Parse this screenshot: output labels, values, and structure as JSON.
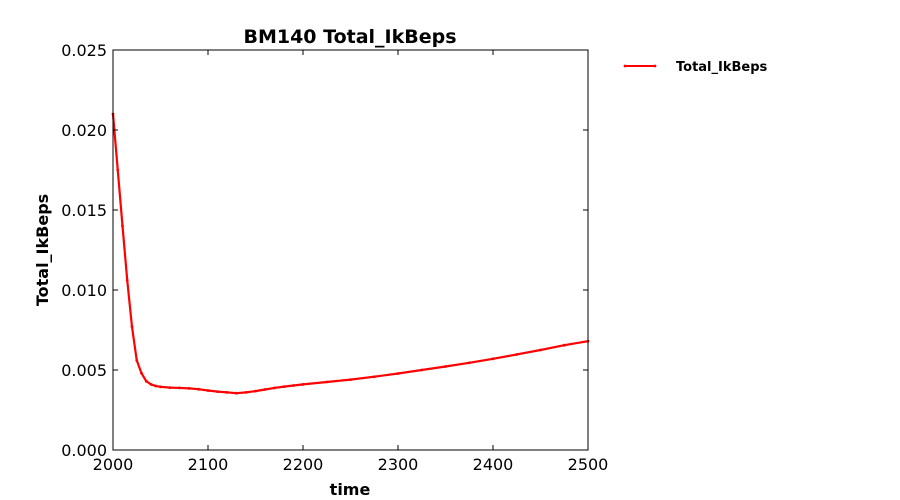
{
  "chart_data": {
    "type": "line",
    "title": "BM140 Total_IkBeps",
    "xlabel": "time",
    "ylabel": "Total_IkBeps",
    "xlim": [
      2000,
      2500
    ],
    "ylim": [
      0,
      0.025
    ],
    "xticks": [
      "2000",
      "2100",
      "2200",
      "2300",
      "2400",
      "2500"
    ],
    "yticks": [
      "0.000",
      "0.005",
      "0.010",
      "0.015",
      "0.020",
      "0.025"
    ],
    "grid": false,
    "legend": {
      "placement": "outside-top-right"
    },
    "series": [
      {
        "name": "Total_IkBeps",
        "color": "#ff0000",
        "x": [
          2000,
          2005,
          2010,
          2015,
          2020,
          2025,
          2030,
          2035,
          2040,
          2045,
          2050,
          2060,
          2070,
          2080,
          2090,
          2100,
          2110,
          2120,
          2130,
          2140,
          2150,
          2160,
          2170,
          2180,
          2190,
          2200,
          2225,
          2250,
          2275,
          2300,
          2325,
          2350,
          2375,
          2400,
          2425,
          2450,
          2475,
          2500
        ],
        "y": [
          0.021,
          0.0175,
          0.014,
          0.0106,
          0.0077,
          0.0056,
          0.0048,
          0.0043,
          0.0041,
          0.004,
          0.00395,
          0.0039,
          0.00388,
          0.00385,
          0.0038,
          0.00372,
          0.00365,
          0.0036,
          0.00355,
          0.0036,
          0.00368,
          0.00378,
          0.00388,
          0.00396,
          0.00403,
          0.0041,
          0.00425,
          0.0044,
          0.00458,
          0.00478,
          0.005,
          0.00522,
          0.00545,
          0.0057,
          0.00597,
          0.00625,
          0.00655,
          0.0068
        ]
      }
    ]
  }
}
